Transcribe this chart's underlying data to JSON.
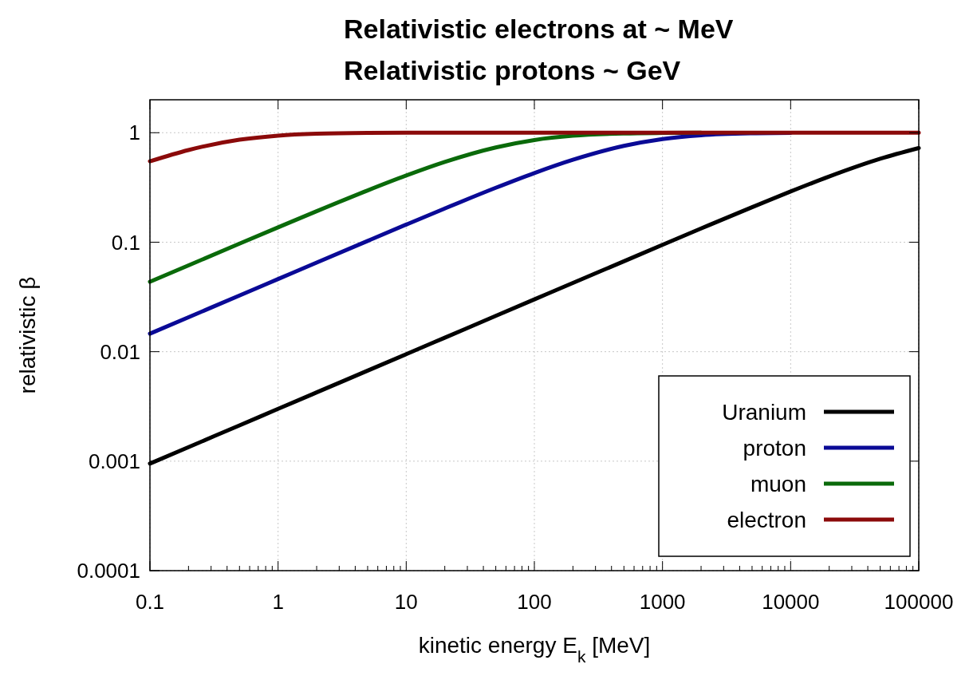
{
  "chart_data": {
    "type": "line",
    "title": "Relativistic electrons at ~ MeV",
    "subtitle": "Relativistic protons ~  GeV",
    "xlabel": "kinetic energy E$_{k}$ [MeV]",
    "ylabel": "relativistic β",
    "log": "xy",
    "grid": true,
    "legend": "bottom right",
    "line_style": "solid",
    "marker": "none",
    "x": [
      0.1,
      0.2,
      0.5,
      1,
      2,
      5,
      10,
      20,
      50,
      100,
      200,
      500,
      1000,
      2000,
      5000,
      10000,
      20000,
      50000,
      100000
    ],
    "xlim": [
      0.1,
      100000
    ],
    "xticks": [
      0.1,
      1,
      10,
      100,
      1000,
      10000,
      100000
    ],
    "ylim": [
      0.0001,
      2
    ],
    "yticks": [
      0.0001,
      0.001,
      0.01,
      0.1,
      1
    ],
    "series": [
      {
        "name": "Uranium",
        "color": "#000000",
        "values": [
          0.00095,
          0.001343,
          0.002124,
          0.003003,
          0.004247,
          0.006716,
          0.009498,
          0.01343,
          0.02123,
          0.03002,
          0.04245,
          0.067,
          0.0947,
          0.1334,
          0.2089,
          0.2906,
          0.3983,
          0.5781,
          0.7246
        ]
      },
      {
        "name": "proton",
        "color": "#0a0a96",
        "values": [
          0.0146,
          0.02064,
          0.0326,
          0.0461,
          0.0652,
          0.1028,
          0.1448,
          0.2032,
          0.3141,
          0.4282,
          0.5662,
          0.7579,
          0.875,
          0.9477,
          0.9874,
          0.9963,
          null,
          null,
          null
        ]
      },
      {
        "name": "muon",
        "color": "#0a6a0a",
        "values": [
          0.0435,
          0.0615,
          0.097,
          0.1366,
          0.1919,
          0.2972,
          0.4067,
          0.5413,
          0.7343,
          0.8579,
          0.9384,
          0.9847,
          0.9954,
          0.9989,
          null,
          null,
          null,
          null,
          null
        ]
      },
      {
        "name": "electron",
        "color": "#8b0a0a",
        "values": [
          0.548,
          0.695,
          0.863,
          0.941,
          0.979,
          0.996,
          0.999,
          1,
          1,
          1,
          1,
          1,
          1,
          1,
          1,
          1,
          1,
          1,
          1
        ]
      }
    ]
  }
}
